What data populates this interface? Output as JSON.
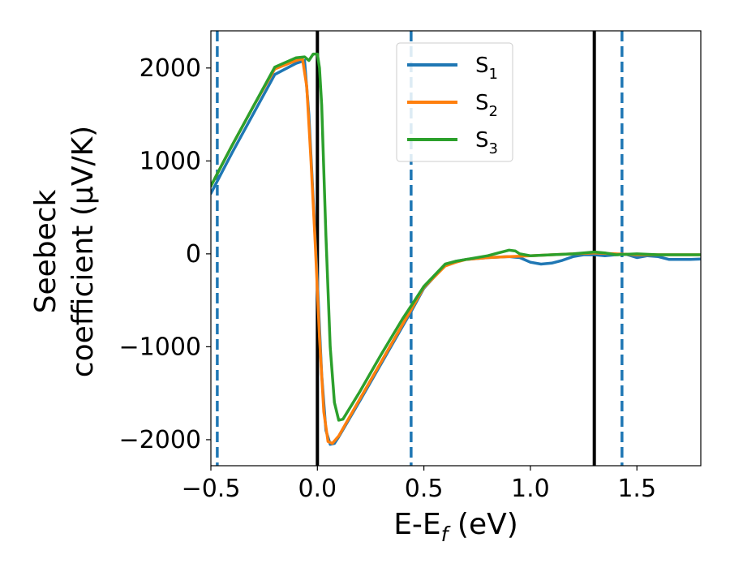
{
  "chart_data": {
    "type": "line",
    "title": "",
    "xlabel": {
      "main": "E-E",
      "sub": "f",
      "suffix": " (eV)"
    },
    "ylabel": {
      "line1": "Seebeck",
      "line2": "coefficient  (μV/K)"
    },
    "xlim": [
      -0.5,
      1.8
    ],
    "ylim": [
      -2280,
      2400
    ],
    "x_ticks": [
      -0.5,
      0.0,
      0.5,
      1.0,
      1.5
    ],
    "x_tick_labels": [
      "−0.5",
      "0.0",
      "0.5",
      "1.0",
      "1.5"
    ],
    "y_ticks": [
      -2000,
      -1000,
      0,
      1000,
      2000
    ],
    "y_tick_labels": [
      "−2000",
      "−1000",
      "0",
      "1000",
      "2000"
    ],
    "grid": false,
    "legend_position": "top-center",
    "series": [
      {
        "name": "S",
        "name_sub": "1",
        "color": "#1f77b4",
        "x": [
          -0.5,
          -0.45,
          -0.4,
          -0.3,
          -0.2,
          -0.1,
          -0.06,
          -0.04,
          -0.02,
          0.0,
          0.02,
          0.04,
          0.06,
          0.08,
          0.1,
          0.2,
          0.3,
          0.4,
          0.44,
          0.5,
          0.6,
          0.65,
          0.7,
          0.8,
          0.9,
          0.95,
          1.0,
          1.05,
          1.1,
          1.15,
          1.2,
          1.25,
          1.3,
          1.35,
          1.4,
          1.45,
          1.5,
          1.55,
          1.6,
          1.65,
          1.7,
          1.75,
          1.8
        ],
        "y": [
          650,
          870,
          1090,
          1510,
          1930,
          2050,
          2080,
          1500,
          600,
          -300,
          -1300,
          -1900,
          -2050,
          -2040,
          -1970,
          -1580,
          -1180,
          -780,
          -620,
          -370,
          -120,
          -80,
          -60,
          -40,
          -30,
          -40,
          -90,
          -110,
          -100,
          -70,
          -30,
          -10,
          -10,
          -20,
          -10,
          -5,
          -40,
          -20,
          -30,
          -60,
          -60,
          -60,
          -55
        ]
      },
      {
        "name": "S",
        "name_sub": "2",
        "color": "#ff7f0e",
        "x": [
          -0.5,
          -0.45,
          -0.4,
          -0.3,
          -0.2,
          -0.1,
          -0.07,
          -0.05,
          -0.03,
          -0.01,
          0.01,
          0.03,
          0.05,
          0.07,
          0.1,
          0.2,
          0.3,
          0.4,
          0.44,
          0.5,
          0.6,
          0.65,
          0.7,
          0.8,
          0.9,
          1.0,
          1.1,
          1.2,
          1.3,
          1.4,
          1.5,
          1.6,
          1.7,
          1.8
        ],
        "y": [
          730,
          950,
          1170,
          1590,
          1990,
          2080,
          2100,
          1800,
          1000,
          100,
          -900,
          -1700,
          -2020,
          -2040,
          -1960,
          -1560,
          -1160,
          -760,
          -600,
          -360,
          -130,
          -90,
          -60,
          -40,
          -30,
          -20,
          -10,
          0,
          10,
          0,
          -10,
          -10,
          -10,
          -10
        ]
      },
      {
        "name": "S",
        "name_sub": "3",
        "color": "#2ca02c",
        "x": [
          -0.5,
          -0.45,
          -0.4,
          -0.3,
          -0.2,
          -0.1,
          -0.06,
          -0.04,
          -0.02,
          0.0,
          0.01,
          0.02,
          0.04,
          0.06,
          0.08,
          0.1,
          0.12,
          0.2,
          0.3,
          0.4,
          0.44,
          0.5,
          0.6,
          0.65,
          0.7,
          0.8,
          0.85,
          0.9,
          0.93,
          0.95,
          1.0,
          1.1,
          1.2,
          1.3,
          1.35,
          1.4,
          1.5,
          1.6,
          1.7,
          1.8
        ],
        "y": [
          730,
          950,
          1170,
          1590,
          2010,
          2110,
          2120,
          2080,
          2150,
          2150,
          2000,
          1600,
          200,
          -1000,
          -1600,
          -1790,
          -1780,
          -1480,
          -1080,
          -700,
          -560,
          -350,
          -110,
          -80,
          -60,
          -20,
          10,
          40,
          30,
          0,
          -20,
          -10,
          0,
          20,
          10,
          -10,
          0,
          -10,
          -10,
          -10
        ]
      }
    ],
    "reference_lines": [
      {
        "x": -0.47,
        "style": "dashed",
        "color": "#1f77b4"
      },
      {
        "x": 0.0,
        "style": "solid",
        "color": "#000000"
      },
      {
        "x": 0.44,
        "style": "dashed",
        "color": "#1f77b4"
      },
      {
        "x": 1.3,
        "style": "solid",
        "color": "#000000"
      },
      {
        "x": 1.43,
        "style": "dashed",
        "color": "#1f77b4"
      }
    ]
  }
}
